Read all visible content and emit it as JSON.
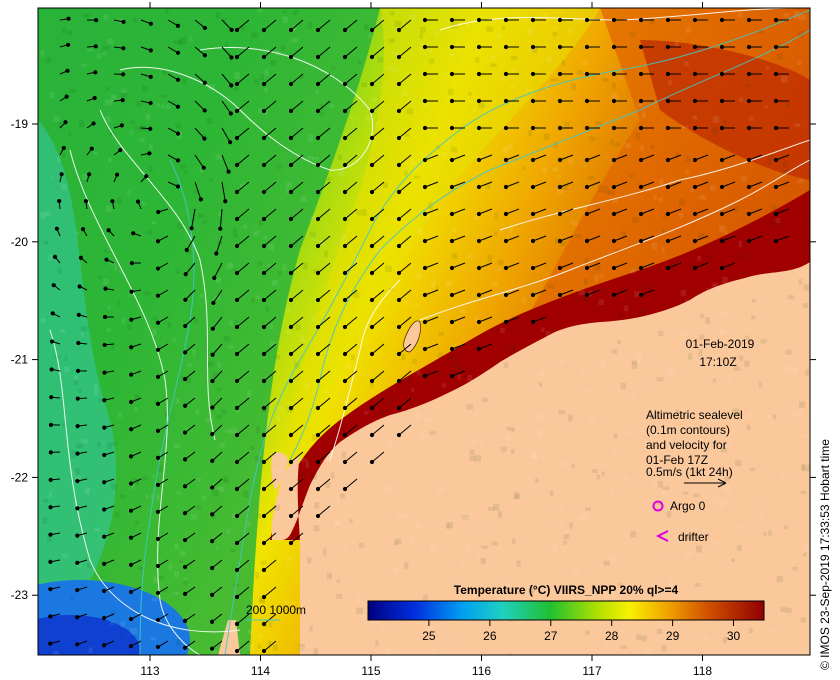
{
  "map": {
    "lon_ticks": [
      "113",
      "114",
      "115",
      "116",
      "117",
      "118"
    ],
    "lat_ticks": [
      "-19",
      "-20",
      "-21",
      "-22",
      "-23"
    ],
    "lon_values": [
      113,
      114,
      115,
      116,
      117,
      118
    ],
    "lat_values": [
      -19,
      -20,
      -21,
      -22,
      -23
    ]
  },
  "timestamp": {
    "date": "01-Feb-2019",
    "time": "17:10Z"
  },
  "legend": {
    "lines": [
      "Altimetric sealevel",
      "(0.1m contours)",
      "and velocity for",
      "01-Feb 17Z",
      "0.5m/s (1kt 24h)"
    ],
    "argo_label": "Argo 0",
    "drifter_label": "drifter",
    "argo_color": "#e000e0",
    "drifter_color": "#e000e0"
  },
  "bathy": {
    "label": "200  1000m",
    "color": "#40c8c8"
  },
  "colorbar": {
    "title": "Temperature (°C) VIIRS_NPP 20% ql>=4",
    "ticks": [
      "25",
      "26",
      "27",
      "28",
      "29",
      "30"
    ],
    "tick_values": [
      25,
      26,
      27,
      28,
      29,
      30
    ],
    "range": [
      24,
      30.5
    ]
  },
  "credit": "© IMOS 23-Sep-2019 17:33:53 Hobart time",
  "colors": {
    "land": "#fbc89b",
    "hot": "#9a0000",
    "warm": "#e8a000",
    "mid": "#20c020",
    "cool": "#20b0d0"
  }
}
